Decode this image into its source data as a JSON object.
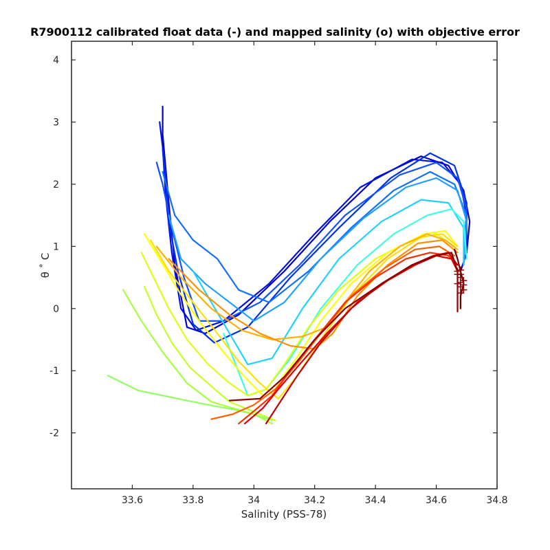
{
  "chart_data": {
    "type": "line",
    "title": "R7900112 calibrated float data (-) and mapped salinity (o) with objective error",
    "xlabel": "Salinity (PSS-78)",
    "ylabel": "θ ˚ C",
    "xlim": [
      33.4,
      34.8
    ],
    "ylim": [
      -2.9,
      4.3
    ],
    "xticks": [
      33.6,
      33.8,
      34,
      34.2,
      34.4,
      34.6,
      34.8
    ],
    "xtick_labels": [
      "33.6",
      "33.8",
      "34",
      "34.2",
      "34.4",
      "34.6",
      "34.8"
    ],
    "yticks": [
      -2,
      -1,
      0,
      1,
      2,
      3,
      4
    ],
    "ytick_labels": [
      "-2",
      "-1",
      "0",
      "1",
      "2",
      "3",
      "4"
    ],
    "grid": false,
    "colormap": "jet",
    "series": [
      {
        "color": "#0000c8",
        "x": [
          33.7,
          33.7,
          33.72,
          33.74,
          33.78,
          33.84,
          33.95,
          34.1,
          34.25,
          34.4,
          34.55,
          34.64,
          34.69,
          34.71,
          34.7,
          34.68
        ],
        "y": [
          3.25,
          2.8,
          1.7,
          0.7,
          -0.3,
          -0.4,
          -0.1,
          0.6,
          1.4,
          2.1,
          2.45,
          2.3,
          1.9,
          1.4,
          0.9,
          0.6
        ]
      },
      {
        "color": "#0010e0",
        "x": [
          33.69,
          33.7,
          33.71,
          33.73,
          33.76,
          33.81,
          33.9,
          34.05,
          34.2,
          34.35,
          34.52,
          34.62,
          34.68,
          34.7,
          34.69
        ],
        "y": [
          3.0,
          2.6,
          1.8,
          0.9,
          0.0,
          -0.35,
          -0.2,
          0.4,
          1.2,
          1.95,
          2.4,
          2.35,
          2.0,
          1.5,
          0.7
        ]
      },
      {
        "color": "#0030f0",
        "x": [
          33.7,
          33.71,
          33.72,
          33.75,
          33.8,
          33.87,
          33.98,
          34.12,
          34.28,
          34.45,
          34.58,
          34.66,
          34.7,
          34.7
        ],
        "y": [
          2.55,
          2.1,
          1.4,
          0.6,
          -0.25,
          -0.55,
          -0.3,
          0.5,
          1.3,
          2.1,
          2.5,
          2.3,
          1.7,
          0.9
        ]
      },
      {
        "color": "#1050ff",
        "x": [
          33.68,
          33.7,
          33.73,
          33.77,
          33.82,
          33.9,
          34.02,
          34.15,
          34.3,
          34.48,
          34.6,
          34.67,
          34.7,
          34.69
        ],
        "y": [
          2.35,
          2.0,
          1.3,
          0.5,
          -0.2,
          -0.2,
          0.1,
          0.7,
          1.5,
          2.15,
          2.35,
          2.1,
          1.6,
          0.8
        ]
      },
      {
        "color": "#1070ff",
        "x": [
          33.7,
          33.74,
          33.8,
          33.88,
          33.95,
          34.05,
          34.18,
          34.32,
          34.46,
          34.58,
          34.66,
          34.7,
          34.69
        ],
        "y": [
          2.2,
          1.5,
          1.1,
          0.8,
          0.3,
          0.1,
          0.6,
          1.3,
          1.9,
          2.2,
          2.0,
          1.5,
          0.8
        ]
      },
      {
        "color": "#20a0ff",
        "x": [
          33.72,
          33.76,
          33.84,
          33.92,
          34.0,
          34.1,
          34.22,
          34.36,
          34.5,
          34.6,
          34.67,
          34.7,
          34.69
        ],
        "y": [
          1.5,
          0.8,
          0.4,
          0.1,
          -0.2,
          0.1,
          0.8,
          1.45,
          1.95,
          2.1,
          1.9,
          1.4,
          0.7
        ]
      },
      {
        "color": "#20d0ff",
        "x": [
          33.8,
          33.86,
          33.92,
          33.98,
          34.06,
          34.16,
          34.28,
          34.42,
          34.55,
          34.64,
          34.69,
          34.69
        ],
        "y": [
          0.6,
          0.1,
          -0.4,
          -0.9,
          -0.8,
          0.0,
          0.8,
          1.4,
          1.75,
          1.7,
          1.3,
          0.7
        ]
      },
      {
        "color": "#40ffe0",
        "x": [
          33.9,
          33.94,
          33.98,
          34.04,
          34.12,
          34.22,
          34.34,
          34.46,
          34.57,
          34.65,
          34.69,
          34.7
        ],
        "y": [
          -0.4,
          -0.9,
          -1.4,
          -1.3,
          -0.8,
          0.0,
          0.7,
          1.2,
          1.5,
          1.6,
          1.4,
          0.8
        ]
      },
      {
        "color": "#90ff60",
        "x": [
          33.52,
          33.62,
          33.75,
          33.85,
          33.93,
          34.0,
          34.06
        ],
        "y": [
          -1.08,
          -1.32,
          -1.45,
          -1.55,
          -1.62,
          -1.7,
          -1.8
        ]
      },
      {
        "color": "#a8ff40",
        "x": [
          33.57,
          33.63,
          33.7,
          33.78,
          33.86,
          33.93,
          34.0,
          34.06
        ],
        "y": [
          0.3,
          -0.2,
          -0.7,
          -1.2,
          -1.5,
          -1.6,
          -1.7,
          -1.85
        ]
      },
      {
        "color": "#c8ff20",
        "x": [
          33.64,
          33.68,
          33.73,
          33.79,
          33.86,
          33.92,
          33.97,
          34.02,
          34.07
        ],
        "y": [
          0.35,
          -0.1,
          -0.55,
          -0.95,
          -1.25,
          -1.5,
          -1.6,
          -1.7,
          -1.8
        ]
      },
      {
        "color": "#e0ff10",
        "x": [
          33.63,
          33.67,
          33.72,
          33.78,
          33.85,
          33.92,
          33.98,
          34.04,
          34.1,
          34.18,
          34.28,
          34.4,
          34.52,
          34.6,
          34.66
        ],
        "y": [
          0.9,
          0.5,
          0.0,
          -0.5,
          -0.9,
          -1.2,
          -1.4,
          -1.3,
          -0.9,
          -0.3,
          0.3,
          0.8,
          1.1,
          1.2,
          1.0
        ]
      },
      {
        "color": "#ffff00",
        "x": [
          33.64,
          33.69,
          33.75,
          33.82,
          33.9,
          33.97,
          34.03,
          34.08,
          34.14,
          34.22,
          34.32,
          34.44,
          34.56,
          34.63,
          34.67
        ],
        "y": [
          1.2,
          0.8,
          0.3,
          -0.2,
          -0.7,
          -1.1,
          -1.4,
          -1.2,
          -0.8,
          -0.2,
          0.4,
          0.9,
          1.2,
          1.25,
          1.0
        ]
      },
      {
        "color": "#ffe000",
        "x": [
          33.66,
          33.72,
          33.8,
          33.88,
          33.95,
          34.02,
          34.08,
          34.14,
          34.22,
          34.32,
          34.44,
          34.55,
          34.62,
          34.67
        ],
        "y": [
          1.1,
          0.6,
          0.1,
          -0.4,
          -0.85,
          -1.2,
          -1.45,
          -1.1,
          -0.5,
          0.2,
          0.8,
          1.15,
          1.2,
          1.0
        ]
      },
      {
        "color": "#ffb000",
        "x": [
          33.68,
          33.76,
          33.86,
          33.96,
          34.06,
          34.16,
          34.24,
          34.3,
          34.38,
          34.48,
          34.57,
          34.63,
          34.67
        ],
        "y": [
          1.0,
          0.5,
          0.0,
          -0.35,
          -0.5,
          -0.45,
          -0.3,
          0.1,
          0.6,
          1.0,
          1.2,
          1.1,
          0.95
        ]
      },
      {
        "color": "#ff9000",
        "x": [
          33.72,
          33.82,
          33.92,
          34.02,
          34.12,
          34.2,
          34.26,
          34.34,
          34.44,
          34.54,
          34.62,
          34.67
        ],
        "y": [
          0.8,
          0.3,
          -0.1,
          -0.4,
          -0.6,
          -0.65,
          -0.4,
          0.2,
          0.7,
          1.05,
          1.1,
          0.9
        ]
      },
      {
        "color": "#ff6000",
        "x": [
          33.86,
          33.93,
          34.0,
          34.07,
          34.14,
          34.22,
          34.32,
          34.43,
          34.53,
          34.61,
          34.66
        ],
        "y": [
          -1.78,
          -1.7,
          -1.55,
          -1.3,
          -0.9,
          -0.4,
          0.2,
          0.65,
          0.95,
          1.0,
          0.85
        ]
      },
      {
        "color": "#ff3000",
        "x": [
          33.95,
          34.0,
          34.06,
          34.12,
          34.2,
          34.3,
          34.4,
          34.5,
          34.58,
          34.64,
          34.67
        ],
        "y": [
          -1.85,
          -1.65,
          -1.4,
          -1.0,
          -0.5,
          0.1,
          0.5,
          0.8,
          0.9,
          0.85,
          0.7
        ]
      },
      {
        "color": "#e00000",
        "x": [
          33.97,
          34.03,
          34.08,
          34.15,
          34.24,
          34.34,
          34.44,
          34.53,
          34.6,
          34.65,
          34.67
        ],
        "y": [
          -1.85,
          -1.6,
          -1.3,
          -0.9,
          -0.4,
          0.1,
          0.45,
          0.7,
          0.85,
          0.8,
          0.6
        ]
      },
      {
        "color": "#c00000",
        "x": [
          34.04,
          34.08,
          34.14,
          34.22,
          34.32,
          34.42,
          34.52,
          34.59,
          34.64,
          34.67
        ],
        "y": [
          -1.85,
          -1.55,
          -1.1,
          -0.55,
          0.0,
          0.4,
          0.7,
          0.85,
          0.9,
          0.7
        ]
      },
      {
        "color": "#8c0000",
        "x": [
          33.92,
          34.02,
          34.1,
          34.2,
          34.3,
          34.42,
          34.52,
          34.6,
          34.65,
          34.67,
          34.67
        ],
        "y": [
          -1.48,
          -1.45,
          -1.1,
          -0.5,
          0.0,
          0.4,
          0.7,
          0.85,
          0.9,
          0.6,
          -0.05
        ]
      },
      {
        "color": "#700000",
        "x": [
          34.66,
          34.67,
          34.68,
          34.69,
          34.68,
          34.68
        ],
        "y": [
          0.95,
          0.8,
          0.6,
          0.4,
          0.2,
          0.0
        ]
      }
    ],
    "markers": {
      "symbol": "+",
      "color": "#8c0000",
      "x": [
        34.67,
        34.68,
        34.68,
        34.69,
        34.67,
        34.68,
        34.69,
        34.68,
        34.67,
        34.68,
        34.68,
        34.69
      ],
      "y": [
        0.6,
        0.55,
        0.5,
        0.45,
        0.4,
        0.35,
        0.3,
        0.25,
        0.55,
        0.42,
        0.62,
        0.38
      ]
    }
  }
}
